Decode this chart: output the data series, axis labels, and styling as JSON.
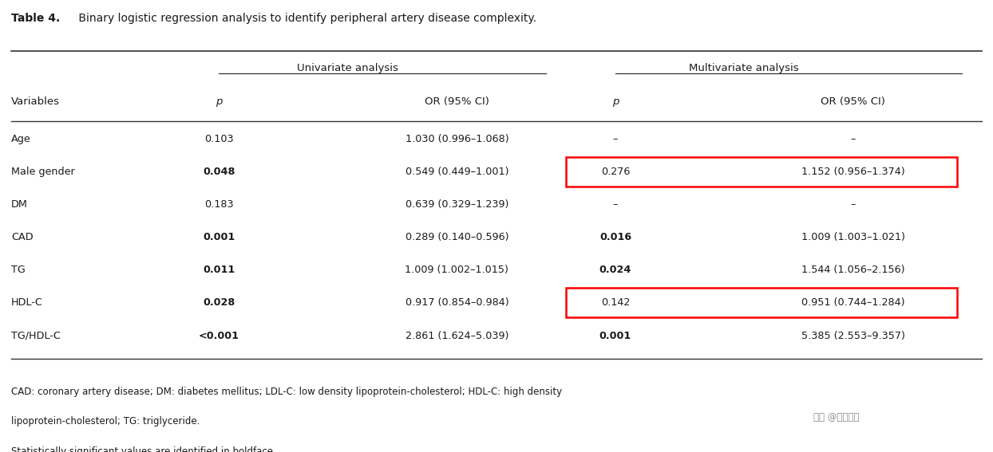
{
  "title_bold": "Table 4.",
  "title_rest": " Binary logistic regression analysis to identify peripheral artery disease complexity.",
  "col_headers": [
    "Variables",
    "p",
    "OR (95% CI)",
    "p",
    "OR (95% CI)"
  ],
  "group_headers": [
    "Univariate analysis",
    "Multivariate analysis"
  ],
  "rows": [
    {
      "variable": "Age",
      "uni_p": "0.103",
      "uni_p_bold": false,
      "uni_or": "1.030 (0.996–1.068)",
      "uni_or_bold": false,
      "multi_p": "–",
      "multi_p_bold": false,
      "multi_or": "–",
      "multi_or_bold": false,
      "highlight": false
    },
    {
      "variable": "Male gender",
      "uni_p": "0.048",
      "uni_p_bold": true,
      "uni_or": "0.549 (0.449–1.001)",
      "uni_or_bold": false,
      "multi_p": "0.276",
      "multi_p_bold": false,
      "multi_or": "1.152 (0.956–1.374)",
      "multi_or_bold": false,
      "highlight": true
    },
    {
      "variable": "DM",
      "uni_p": "0.183",
      "uni_p_bold": false,
      "uni_or": "0.639 (0.329–1.239)",
      "uni_or_bold": false,
      "multi_p": "–",
      "multi_p_bold": false,
      "multi_or": "–",
      "multi_or_bold": false,
      "highlight": false
    },
    {
      "variable": "CAD",
      "uni_p": "0.001",
      "uni_p_bold": true,
      "uni_or": "0.289 (0.140–0.596)",
      "uni_or_bold": false,
      "multi_p": "0.016",
      "multi_p_bold": true,
      "multi_or": "1.009 (1.003–1.021)",
      "multi_or_bold": false,
      "highlight": false
    },
    {
      "variable": "TG",
      "uni_p": "0.011",
      "uni_p_bold": true,
      "uni_or": "1.009 (1.002–1.015)",
      "uni_or_bold": false,
      "multi_p": "0.024",
      "multi_p_bold": true,
      "multi_or": "1.544 (1.056–2.156)",
      "multi_or_bold": false,
      "highlight": false
    },
    {
      "variable": "HDL-C",
      "uni_p": "0.028",
      "uni_p_bold": true,
      "uni_or": "0.917 (0.854–0.984)",
      "uni_or_bold": false,
      "multi_p": "0.142",
      "multi_p_bold": false,
      "multi_or": "0.951 (0.744–1.284)",
      "multi_or_bold": false,
      "highlight": true
    },
    {
      "variable": "TG/HDL-C",
      "uni_p": "<0.001",
      "uni_p_bold": true,
      "uni_or": "2.861 (1.624–5.039)",
      "uni_or_bold": false,
      "multi_p": "0.001",
      "multi_p_bold": true,
      "multi_or": "5.385 (2.553–9.357)",
      "multi_or_bold": false,
      "highlight": false
    }
  ],
  "footnote1": "CAD: coronary artery disease; DM: diabetes mellitus; LDL-C: low density lipoprotein-cholesterol; HDL-C: high density",
  "footnote2": "lipoprotein-cholesterol; TG: triglyceride.",
  "footnote3": "Statistically significant values are identified in boldface.",
  "watermark": "知乎 @医只蜗牛",
  "bg_color": "#ffffff",
  "text_color": "#1a1a1a",
  "highlight_color": "#ff0000",
  "line_color": "#333333"
}
